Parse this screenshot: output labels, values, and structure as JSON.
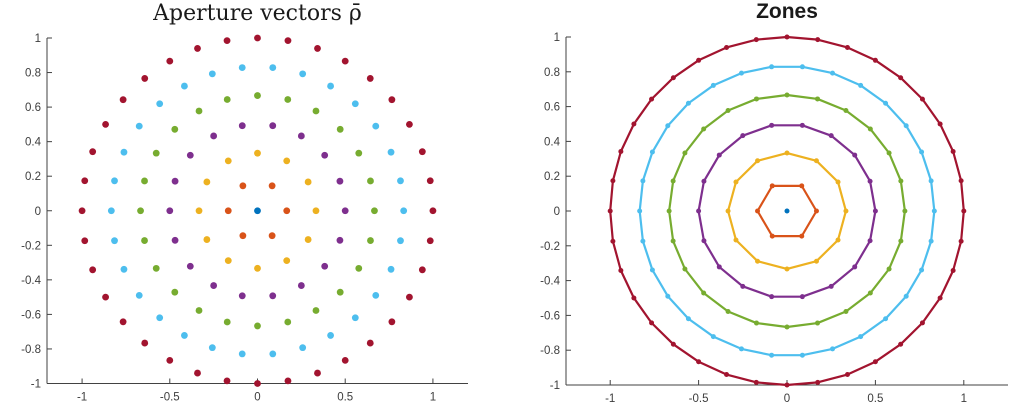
{
  "figure": {
    "background": "#ffffff",
    "axis_color": "#424242",
    "tick_label_color": "#3d3d3d",
    "title_color": "#1a1a1a"
  },
  "chart_data": [
    {
      "type": "scatter",
      "title": "Aperture vectors ρ̄",
      "title_style": "latex-serif",
      "xlabel": "",
      "ylabel": "",
      "xlim": [
        -1.2,
        1.2
      ],
      "ylim": [
        -1,
        1
      ],
      "grid": false,
      "legend": "none",
      "xticks": {
        "values": [
          -1,
          -0.5,
          0,
          0.5,
          1
        ],
        "labels": [
          "-1",
          "-0.5",
          "0",
          "0.5",
          "1"
        ]
      },
      "yticks": {
        "values": [
          -1,
          -0.8,
          -0.6,
          -0.4,
          -0.2,
          0,
          0.2,
          0.4,
          0.6,
          0.8,
          1
        ],
        "labels": [
          "-1",
          "-0.8",
          "-0.6",
          "-0.4",
          "-0.2",
          "0",
          "0.2",
          "0.4",
          "0.6",
          "0.8",
          "1"
        ]
      },
      "center_point": {
        "x": 0,
        "y": 0,
        "color": "#0072BD"
      },
      "zones": [
        {
          "zone": 1,
          "color": "#D95319",
          "radius": 0.1667,
          "n_points": 6,
          "angle_start_deg": 0,
          "angle_step_deg": 60,
          "connected": false
        },
        {
          "zone": 2,
          "color": "#EDB120",
          "radius": 0.3333,
          "n_points": 12,
          "angle_start_deg": 0,
          "angle_step_deg": 30,
          "connected": false
        },
        {
          "zone": 3,
          "color": "#7E2F8E",
          "radius": 0.5,
          "n_points": 18,
          "angle_start_deg": 0,
          "angle_step_deg": 20,
          "connected": false
        },
        {
          "zone": 4,
          "color": "#77AC30",
          "radius": 0.6667,
          "n_points": 24,
          "angle_start_deg": 0,
          "angle_step_deg": 15,
          "connected": false
        },
        {
          "zone": 5,
          "color": "#4DBEEE",
          "radius": 0.8333,
          "n_points": 30,
          "angle_start_deg": 0,
          "angle_step_deg": 12,
          "connected": false
        },
        {
          "zone": 6,
          "color": "#A2142F",
          "radius": 1.0,
          "n_points": 36,
          "angle_start_deg": 0,
          "angle_step_deg": 10,
          "connected": false
        }
      ],
      "point_rule": "point i of a zone lies at (r*cos(start+i*step), r*sin(start+i*step))"
    },
    {
      "type": "line",
      "title": "Zones",
      "title_style": "sans-bold",
      "xlabel": "",
      "ylabel": "",
      "xlim": [
        -1.25,
        1.25
      ],
      "ylim": [
        -1,
        1
      ],
      "grid": false,
      "legend": "none",
      "xticks": {
        "values": [
          -1,
          -0.5,
          0,
          0.5,
          1
        ],
        "labels": [
          "-1",
          "-0.5",
          "0",
          "0.5",
          "1"
        ]
      },
      "yticks": {
        "values": [
          -1,
          -0.8,
          -0.6,
          -0.4,
          -0.2,
          0,
          0.2,
          0.4,
          0.6,
          0.8,
          1
        ],
        "labels": [
          "-1",
          "-0.8",
          "-0.6",
          "-0.4",
          "-0.2",
          "0",
          "0.2",
          "0.4",
          "0.6",
          "0.8",
          "1"
        ]
      },
      "center_point": {
        "x": 0,
        "y": 0,
        "color": "#0072BD"
      },
      "zones": [
        {
          "zone": 1,
          "color": "#D95319",
          "radius": 0.1667,
          "n_points": 6,
          "angle_start_deg": 0,
          "angle_step_deg": 60,
          "connected": true
        },
        {
          "zone": 2,
          "color": "#EDB120",
          "radius": 0.3333,
          "n_points": 12,
          "angle_start_deg": 0,
          "angle_step_deg": 30,
          "connected": true
        },
        {
          "zone": 3,
          "color": "#7E2F8E",
          "radius": 0.5,
          "n_points": 18,
          "angle_start_deg": 0,
          "angle_step_deg": 20,
          "connected": true
        },
        {
          "zone": 4,
          "color": "#77AC30",
          "radius": 0.6667,
          "n_points": 24,
          "angle_start_deg": 0,
          "angle_step_deg": 15,
          "connected": true
        },
        {
          "zone": 5,
          "color": "#4DBEEE",
          "radius": 0.8333,
          "n_points": 30,
          "angle_start_deg": 0,
          "angle_step_deg": 12,
          "connected": true
        },
        {
          "zone": 6,
          "color": "#A2142F",
          "radius": 1.0,
          "n_points": 36,
          "angle_start_deg": 0,
          "angle_step_deg": 10,
          "connected": true
        }
      ],
      "point_rule": "point i of a zone lies at (r*cos(start+i*step), r*sin(start+i*step)); consecutive points of a zone are connected into a closed circle"
    }
  ]
}
